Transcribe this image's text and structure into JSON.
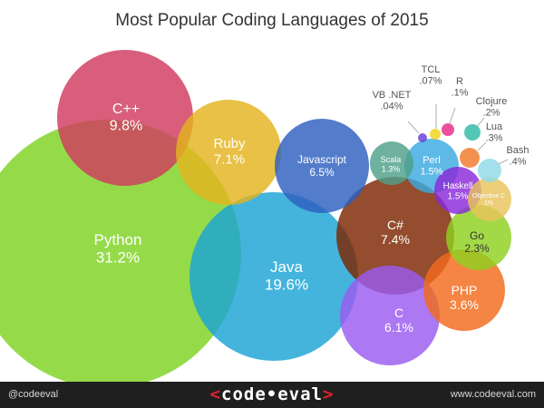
{
  "title": "Most Popular Coding Languages of 2015",
  "footer": {
    "handle": "@codeeval",
    "brand_left": "<",
    "brand_text": "code•eval",
    "brand_right": ">",
    "site": "www.codeeval.com"
  },
  "chart_data": {
    "type": "bubble",
    "title": "Most Popular Coding Languages of 2015",
    "value_unit": "%",
    "series": [
      {
        "name": "Python",
        "label": "31.2%",
        "value": 31.2,
        "color": "#7ed321"
      },
      {
        "name": "Java",
        "label": "19.6%",
        "value": 19.6,
        "color": "#1ba3d6"
      },
      {
        "name": "C++",
        "label": "9.8%",
        "value": 9.8,
        "color": "#cf3a5e"
      },
      {
        "name": "C#",
        "label": "7.4%",
        "value": 7.4,
        "color": "#7d2600"
      },
      {
        "name": "Ruby",
        "label": "7.1%",
        "value": 7.1,
        "color": "#e3b31d"
      },
      {
        "name": "Javascript",
        "label": "6.5%",
        "value": 6.5,
        "color": "#2d5fbf"
      },
      {
        "name": "C",
        "label": "6.1%",
        "value": 6.1,
        "color": "#9a5cf0"
      },
      {
        "name": "PHP",
        "label": "3.6%",
        "value": 3.6,
        "color": "#f26a1b"
      },
      {
        "name": "Go",
        "label": "2.3%",
        "value": 2.3,
        "color": "#8fd11e"
      },
      {
        "name": "Perl",
        "label": "1.5%",
        "value": 1.5,
        "color": "#3aa9e0"
      },
      {
        "name": "Haskell",
        "label": "1.5%",
        "value": 1.5,
        "color": "#8a2ad9"
      },
      {
        "name": "Scala",
        "label": "1.3%",
        "value": 1.3,
        "color": "#4fa08a"
      },
      {
        "name": "Objective C",
        "label": "1%",
        "value": 1.0,
        "color": "#e8c45a"
      },
      {
        "name": "Bash",
        "label": ".4%",
        "value": 0.4,
        "color": "#8fd9e8"
      },
      {
        "name": "Lua",
        "label": ".3%",
        "value": 0.3,
        "color": "#f07a2a"
      },
      {
        "name": "Clojure",
        "label": ".2%",
        "value": 0.2,
        "color": "#30b9a5"
      },
      {
        "name": "R",
        "label": ".1%",
        "value": 0.1,
        "color": "#e62a8a"
      },
      {
        "name": "TCL",
        "label": ".07%",
        "value": 0.07,
        "color": "#f0d21a"
      },
      {
        "name": "VB .NET",
        "label": ".04%",
        "value": 0.04,
        "color": "#6a3ad6"
      }
    ]
  }
}
